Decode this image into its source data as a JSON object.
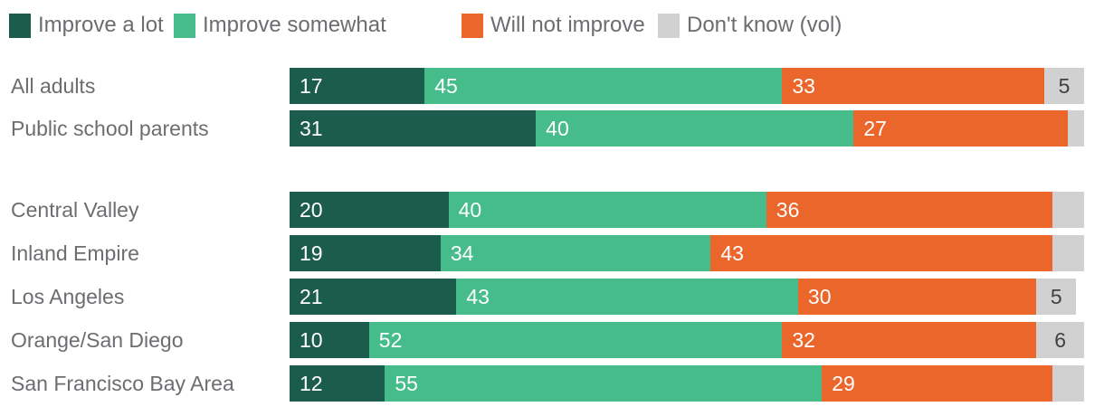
{
  "legend": [
    {
      "label": "Improve a lot",
      "color": "#1c5c4c",
      "swatch": "dark-green-swatch"
    },
    {
      "label": "Improve somewhat",
      "color": "#45bc8a",
      "swatch": "medium-green-swatch"
    },
    {
      "label": "Will not improve",
      "color": "#ea662b",
      "swatch": "orange-swatch"
    },
    {
      "label": "Don't know (vol)",
      "color": "#d1d1d1",
      "swatch": "gray-swatch"
    }
  ],
  "text_colors": {
    "category_label": "#6b6d70",
    "value_label_on_color": "#ffffff",
    "value_label_on_gray": "#414141"
  },
  "chart_data": {
    "type": "bar",
    "stacked": true,
    "orientation": "horizontal",
    "xlim": [
      0,
      100
    ],
    "grid": false,
    "legend_position": "top",
    "categories": [
      "All adults",
      "Public school parents",
      "Central Valley",
      "Inland Empire",
      "Los Angeles",
      "Orange/San Diego",
      "San Francisco Bay Area"
    ],
    "groups": [
      [
        0,
        1
      ],
      [
        2,
        3,
        4,
        5,
        6
      ]
    ],
    "series": [
      {
        "name": "Improve a lot",
        "values": [
          17,
          31,
          20,
          19,
          21,
          10,
          12
        ],
        "labels": [
          "17",
          "31",
          "20",
          "19",
          "21",
          "10",
          "12"
        ]
      },
      {
        "name": "Improve somewhat",
        "values": [
          45,
          40,
          40,
          34,
          43,
          52,
          55
        ],
        "labels": [
          "45",
          "40",
          "40",
          "34",
          "43",
          "52",
          "55"
        ]
      },
      {
        "name": "Will not improve",
        "values": [
          33,
          27,
          36,
          43,
          30,
          32,
          29
        ],
        "labels": [
          "33",
          "27",
          "36",
          "43",
          "30",
          "32",
          "29"
        ]
      },
      {
        "name": "Don't know (vol)",
        "values": [
          5,
          2,
          4,
          4,
          5,
          6,
          4
        ],
        "labels": [
          "5",
          "",
          "",
          "",
          "5",
          "6",
          ""
        ]
      }
    ]
  }
}
